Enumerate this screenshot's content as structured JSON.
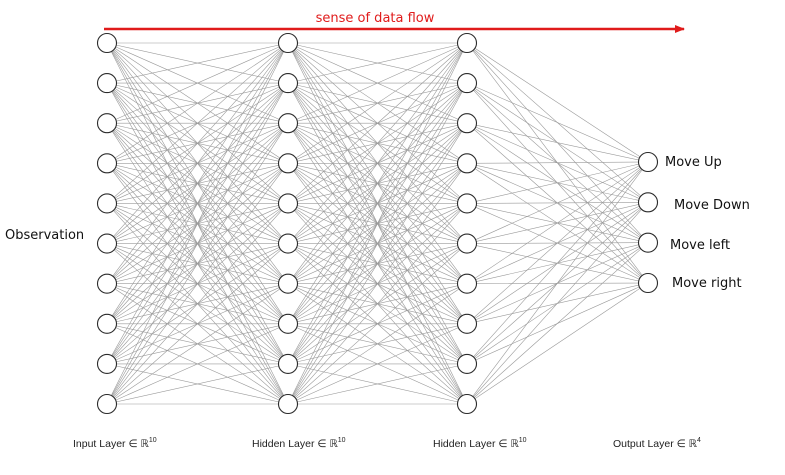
{
  "flow": {
    "label": "sense of data flow",
    "color": "#e01b1b"
  },
  "input_label": "Observation",
  "layers": [
    {
      "name": "Input Layer ∈ ℝ",
      "superscript": "10",
      "neurons": 10
    },
    {
      "name": "Hidden Layer ∈ ℝ",
      "superscript": "10",
      "neurons": 10
    },
    {
      "name": "Hidden Layer ∈ ℝ",
      "superscript": "10",
      "neurons": 10
    },
    {
      "name": "Output Layer ∈ ℝ",
      "superscript": "4",
      "neurons": 4
    }
  ],
  "outputs": [
    "Move Up",
    "Move Down",
    "Move left",
    "Move right"
  ]
}
